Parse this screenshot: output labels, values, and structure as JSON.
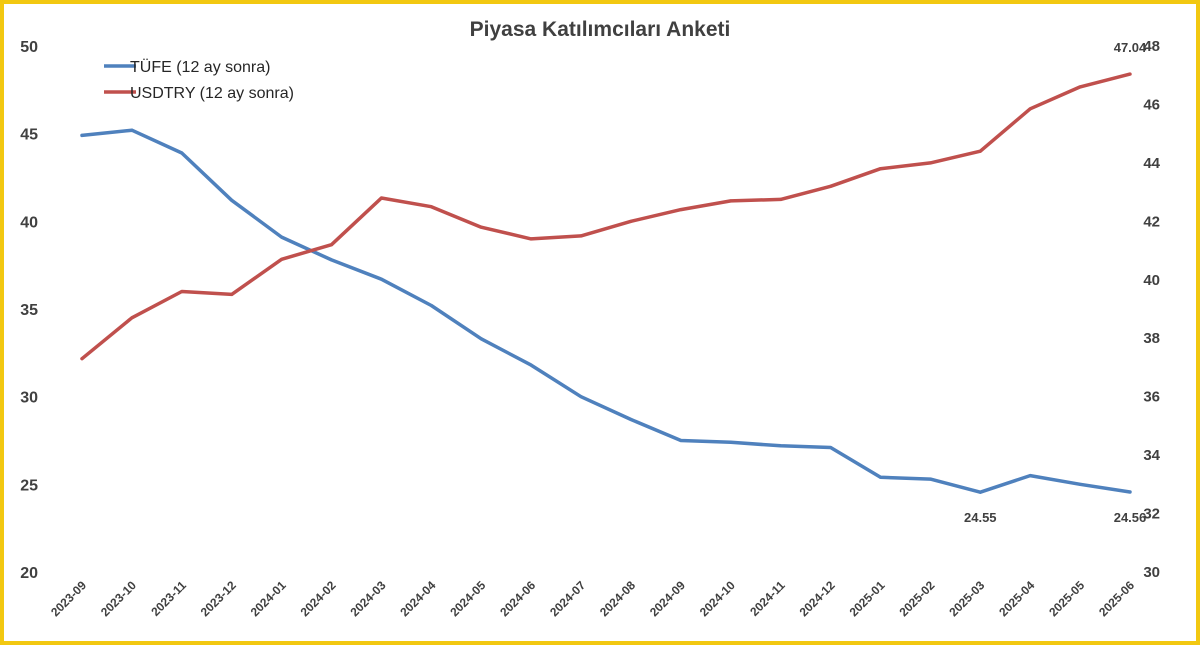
{
  "chart_data": {
    "type": "line",
    "title": "Piyasa Katılımcıları Anketi",
    "x": [
      "2023-09",
      "2023-10",
      "2023-11",
      "2023-12",
      "2024-01",
      "2024-02",
      "2024-03",
      "2024-04",
      "2024-05",
      "2024-06",
      "2024-07",
      "2024-08",
      "2024-09",
      "2024-10",
      "2024-11",
      "2024-12",
      "2025-01",
      "2025-02",
      "2025-03",
      "2025-04",
      "2025-05",
      "2025-06"
    ],
    "y_left": {
      "min": 20,
      "max": 50,
      "ticks": [
        "20",
        "25",
        "30",
        "35",
        "40",
        "45",
        "50"
      ]
    },
    "y_right": {
      "min": 30,
      "max": 48,
      "ticks": [
        "30",
        "32",
        "34",
        "36",
        "38",
        "40",
        "42",
        "44",
        "46",
        "48"
      ]
    },
    "grid": false,
    "legend_position": "top-left",
    "series": [
      {
        "name": "TÜFE (12 ay sonra)",
        "axis": "left",
        "color": "#4F81BD",
        "values": [
          44.9,
          45.2,
          43.9,
          41.2,
          39.1,
          37.8,
          36.7,
          35.2,
          33.3,
          31.8,
          30.0,
          28.7,
          27.5,
          27.4,
          27.2,
          27.1,
          25.4,
          25.3,
          24.55,
          25.5,
          25.0,
          24.56
        ]
      },
      {
        "name": "USDTRY (12 ay sonra)",
        "axis": "right",
        "color": "#C0504D",
        "values": [
          37.3,
          38.7,
          39.6,
          39.5,
          40.7,
          41.2,
          42.8,
          42.5,
          41.8,
          41.4,
          41.5,
          42.0,
          42.4,
          42.7,
          42.75,
          43.2,
          43.8,
          44.0,
          44.4,
          45.85,
          46.6,
          47.04
        ]
      }
    ],
    "annotations": [
      {
        "series": 0,
        "index": 18,
        "text": "24.55"
      },
      {
        "series": 0,
        "index": 21,
        "text": "24.56"
      },
      {
        "series": 1,
        "index": 21,
        "text": "47.04"
      }
    ]
  }
}
